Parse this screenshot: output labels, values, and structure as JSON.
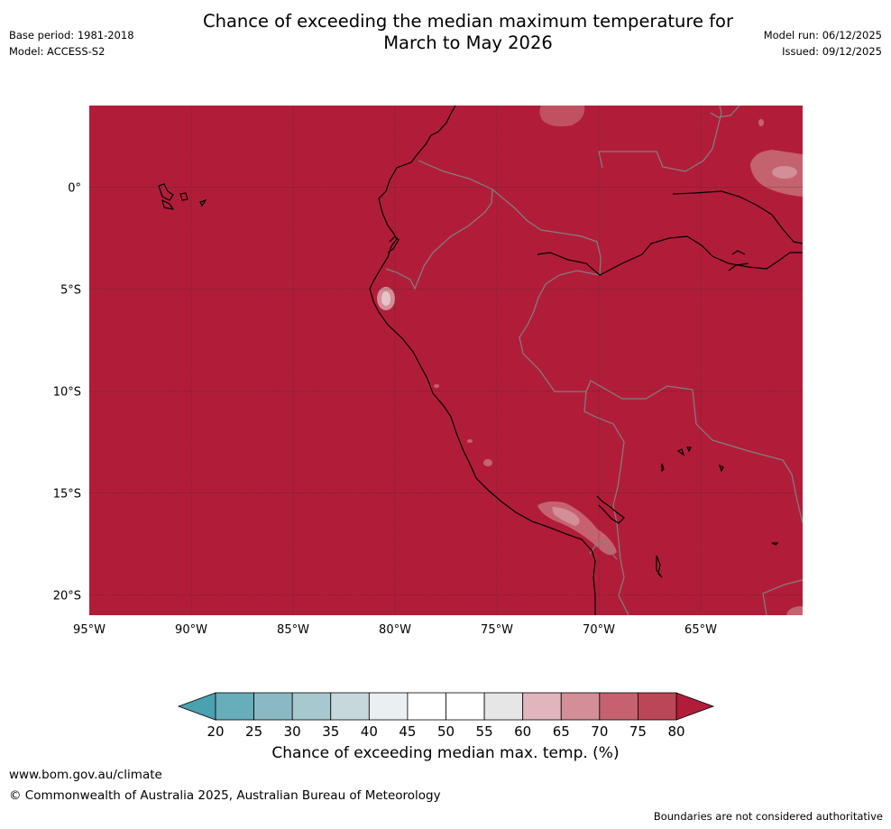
{
  "header": {
    "title_line1": "Chance of exceeding the median maximum temperature for",
    "title_line2": "March to May 2026",
    "base_period": "Base period: 1981-2018",
    "model": "Model: ACCESS-S2",
    "model_run": "Model run: 06/12/2025",
    "issued": "Issued: 09/12/2025"
  },
  "map": {
    "lon_range": [
      -95,
      -60
    ],
    "lat_range": [
      -21,
      4
    ],
    "base_fill_color": "#b11d39",
    "gridlines": true,
    "lon_ticks": [
      {
        "value": -95,
        "label": "95°W"
      },
      {
        "value": -90,
        "label": "90°W"
      },
      {
        "value": -85,
        "label": "85°W"
      },
      {
        "value": -80,
        "label": "80°W"
      },
      {
        "value": -75,
        "label": "75°W"
      },
      {
        "value": -70,
        "label": "70°W"
      },
      {
        "value": -65,
        "label": "65°W"
      }
    ],
    "lat_ticks": [
      {
        "value": 0,
        "label": "0°"
      },
      {
        "value": -5,
        "label": "5°S"
      },
      {
        "value": -10,
        "label": "10°S"
      },
      {
        "value": -15,
        "label": "15°S"
      },
      {
        "value": -20,
        "label": "20°S"
      }
    ]
  },
  "colorbar": {
    "label": "Chance of exceeding median max. temp. (%)",
    "ticks": [
      "20",
      "25",
      "30",
      "35",
      "40",
      "45",
      "50",
      "55",
      "60",
      "65",
      "70",
      "75",
      "80"
    ],
    "colors": [
      "#68adba",
      "#8ab9c4",
      "#a8c8cf",
      "#c6d8dc",
      "#eaf0f2",
      "#ffffff",
      "#ffffff",
      "#e6e6e6",
      "#e0b5bb",
      "#d38e97",
      "#c6626f",
      "#bb4756"
    ],
    "under_color": "#4aa1b0",
    "over_color": "#b11d39"
  },
  "footer": {
    "url": "www.bom.gov.au/climate",
    "copyright": "© Commonwealth of Australia 2025, Australian Bureau of Meteorology",
    "disclaimer": "Boundaries are not considered authoritative"
  }
}
